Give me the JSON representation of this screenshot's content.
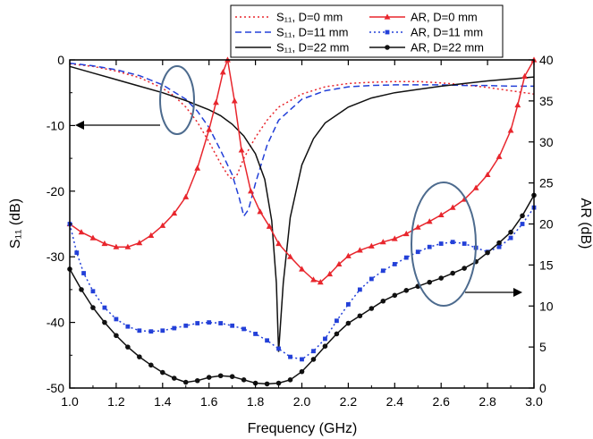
{
  "chart_data": {
    "type": "line",
    "xlabel": "Frequency (GHz)",
    "ylabel_left": "S₁₁ (dB)",
    "ylabel_right": "AR (dB)",
    "xlim": [
      1.0,
      3.0
    ],
    "ylim_left": [
      -50,
      0
    ],
    "ylim_right": [
      0,
      40
    ],
    "xticks": [
      "1.0",
      "1.2",
      "1.4",
      "1.6",
      "1.8",
      "2.0",
      "2.2",
      "2.4",
      "2.6",
      "2.8",
      "3.0"
    ],
    "yticks_left": [
      "0",
      "-10",
      "-20",
      "-30",
      "-40",
      "-50"
    ],
    "yticks_right": [
      "0",
      "5",
      "10",
      "15",
      "20",
      "25",
      "30",
      "35",
      "40"
    ],
    "grid": false,
    "legend_position": "top-right",
    "series": [
      {
        "name": "S₁₁, D=0 mm",
        "axis": "left",
        "color": "#e8262d",
        "dash": "2,3",
        "marker": "none",
        "x": [
          1.0,
          1.1,
          1.2,
          1.3,
          1.4,
          1.45,
          1.5,
          1.55,
          1.6,
          1.65,
          1.68,
          1.7,
          1.72,
          1.75,
          1.8,
          1.85,
          1.9,
          2.0,
          2.1,
          2.2,
          2.3,
          2.4,
          2.5,
          2.6,
          2.7,
          2.8,
          2.9,
          3.0
        ],
        "y": [
          -0.6,
          -1.0,
          -1.7,
          -2.7,
          -4.3,
          -5.5,
          -7.2,
          -9.5,
          -12.5,
          -15.8,
          -17.5,
          -18.2,
          -17.6,
          -15.0,
          -11.8,
          -9.2,
          -7.2,
          -5.2,
          -4.1,
          -3.6,
          -3.4,
          -3.3,
          -3.3,
          -3.5,
          -3.8,
          -4.2,
          -4.7,
          -5.2
        ]
      },
      {
        "name": "S₁₁, D=11 mm",
        "axis": "left",
        "color": "#2340d8",
        "dash": "7,4",
        "marker": "none",
        "x": [
          1.0,
          1.1,
          1.2,
          1.3,
          1.4,
          1.5,
          1.55,
          1.6,
          1.65,
          1.7,
          1.73,
          1.75,
          1.77,
          1.8,
          1.85,
          1.9,
          2.0,
          2.1,
          2.2,
          2.3,
          2.4,
          2.5,
          2.6,
          2.7,
          2.8,
          2.9,
          3.0
        ],
        "y": [
          -0.5,
          -0.9,
          -1.5,
          -2.4,
          -3.8,
          -6.0,
          -7.8,
          -10.3,
          -13.8,
          -17.5,
          -21.0,
          -23.8,
          -22.8,
          -18.8,
          -13.0,
          -9.2,
          -6.0,
          -4.7,
          -4.1,
          -3.9,
          -3.8,
          -3.8,
          -3.8,
          -3.9,
          -3.9,
          -4.0,
          -4.0
        ]
      },
      {
        "name": "S₁₁, D=22 mm",
        "axis": "left",
        "color": "#111111",
        "dash": "",
        "marker": "none",
        "x": [
          1.0,
          1.1,
          1.2,
          1.3,
          1.4,
          1.5,
          1.6,
          1.65,
          1.7,
          1.75,
          1.8,
          1.84,
          1.87,
          1.89,
          1.9,
          1.92,
          1.95,
          2.0,
          2.05,
          2.1,
          2.2,
          2.3,
          2.4,
          2.5,
          2.6,
          2.7,
          2.8,
          2.9,
          3.0
        ],
        "y": [
          -1.0,
          -2.0,
          -3.0,
          -4.0,
          -5.0,
          -6.2,
          -7.6,
          -8.5,
          -9.8,
          -11.6,
          -14.3,
          -18.2,
          -24.5,
          -34.0,
          -44.5,
          -34.0,
          -24.0,
          -16.0,
          -12.0,
          -9.6,
          -7.2,
          -5.8,
          -5.0,
          -4.5,
          -4.0,
          -3.6,
          -3.2,
          -2.9,
          -2.6
        ]
      },
      {
        "name": "AR, D=0 mm",
        "axis": "right",
        "color": "#e8262d",
        "dash": "",
        "marker": "triangle",
        "x": [
          1.0,
          1.05,
          1.1,
          1.15,
          1.2,
          1.25,
          1.3,
          1.35,
          1.4,
          1.45,
          1.5,
          1.55,
          1.6,
          1.63,
          1.66,
          1.68,
          1.71,
          1.74,
          1.78,
          1.82,
          1.86,
          1.9,
          1.95,
          2.0,
          2.05,
          2.08,
          2.12,
          2.16,
          2.2,
          2.25,
          2.3,
          2.35,
          2.4,
          2.45,
          2.5,
          2.55,
          2.6,
          2.65,
          2.7,
          2.75,
          2.8,
          2.85,
          2.9,
          2.93,
          2.96,
          3.0
        ],
        "y": [
          20.0,
          19.0,
          18.3,
          17.6,
          17.2,
          17.2,
          17.7,
          18.6,
          19.8,
          21.3,
          23.3,
          26.8,
          31.5,
          34.8,
          38.5,
          40.0,
          35.0,
          29.0,
          24.0,
          21.5,
          19.7,
          17.6,
          16.0,
          14.5,
          13.2,
          12.9,
          13.9,
          15.1,
          16.1,
          16.8,
          17.3,
          17.8,
          18.2,
          18.8,
          19.6,
          20.3,
          21.1,
          22.0,
          23.0,
          24.4,
          26.0,
          28.2,
          31.4,
          34.5,
          38.0,
          40.0
        ]
      },
      {
        "name": "AR, D=11 mm",
        "axis": "right",
        "color": "#2340d8",
        "dash": "2,3",
        "marker": "square",
        "x": [
          1.0,
          1.03,
          1.06,
          1.1,
          1.15,
          1.2,
          1.25,
          1.3,
          1.35,
          1.4,
          1.45,
          1.5,
          1.55,
          1.6,
          1.65,
          1.7,
          1.75,
          1.8,
          1.85,
          1.9,
          1.95,
          2.0,
          2.05,
          2.1,
          2.15,
          2.2,
          2.25,
          2.3,
          2.35,
          2.4,
          2.45,
          2.5,
          2.55,
          2.6,
          2.65,
          2.7,
          2.75,
          2.8,
          2.85,
          2.9,
          2.95,
          3.0
        ],
        "y": [
          20.0,
          16.5,
          14.0,
          11.8,
          9.8,
          8.4,
          7.5,
          7.0,
          6.9,
          7.0,
          7.3,
          7.6,
          7.9,
          8.0,
          7.9,
          7.6,
          7.2,
          6.6,
          5.8,
          4.8,
          3.8,
          3.5,
          4.5,
          6.0,
          8.2,
          10.2,
          12.0,
          13.3,
          14.3,
          15.1,
          15.9,
          16.6,
          17.2,
          17.6,
          17.8,
          17.6,
          17.1,
          16.6,
          17.2,
          18.3,
          20.0,
          22.0
        ]
      },
      {
        "name": "AR, D=22 mm",
        "axis": "right",
        "color": "#111111",
        "dash": "",
        "marker": "circle",
        "x": [
          1.0,
          1.05,
          1.1,
          1.15,
          1.2,
          1.25,
          1.3,
          1.35,
          1.4,
          1.45,
          1.5,
          1.55,
          1.6,
          1.65,
          1.7,
          1.75,
          1.8,
          1.85,
          1.9,
          1.95,
          2.0,
          2.05,
          2.1,
          2.15,
          2.2,
          2.25,
          2.3,
          2.35,
          2.4,
          2.45,
          2.5,
          2.55,
          2.6,
          2.65,
          2.7,
          2.75,
          2.8,
          2.85,
          2.9,
          2.95,
          3.0
        ],
        "y": [
          14.5,
          12.0,
          9.8,
          8.0,
          6.4,
          5.0,
          3.8,
          2.8,
          1.9,
          1.2,
          0.7,
          0.9,
          1.3,
          1.5,
          1.4,
          1.0,
          0.6,
          0.5,
          0.6,
          1.0,
          2.0,
          3.5,
          5.1,
          6.6,
          7.9,
          8.8,
          9.7,
          10.6,
          11.3,
          11.9,
          12.4,
          12.9,
          13.4,
          14.0,
          14.6,
          15.4,
          16.5,
          17.7,
          19.0,
          21.0,
          23.5
        ]
      }
    ]
  }
}
